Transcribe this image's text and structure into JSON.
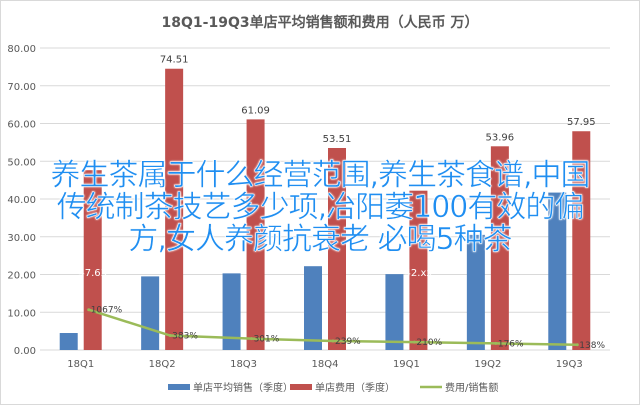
{
  "chart_data": {
    "type": "bar",
    "title": "18Q1-19Q3单店平均销售额和费用（人民币 万）",
    "categories": [
      "18Q1",
      "18Q2",
      "18Q3",
      "18Q4",
      "19Q1",
      "19Q2",
      "19Q3"
    ],
    "ylim": [
      0,
      80
    ],
    "yticks": [
      "0.00",
      "10.00",
      "20.00",
      "30.00",
      "40.00",
      "50.00",
      "60.00",
      "70.00",
      "80.00"
    ],
    "grid": true,
    "legend_position": "bottom",
    "series": [
      {
        "name": "单店平均销售（季度）",
        "kind": "bar",
        "color": "#4f81bd",
        "values": [
          4.5,
          19.5,
          20.3,
          22.2,
          20.1,
          30.5,
          41.7
        ]
      },
      {
        "name": "单店费用（季度）",
        "kind": "bar",
        "color": "#c0504d",
        "values": [
          47.63,
          74.51,
          61.09,
          53.51,
          42.2,
          53.96,
          57.95
        ],
        "labels": [
          "47.63",
          "74.51",
          "61.09",
          "53.51",
          "42.xx",
          "53.96",
          "57.95"
        ]
      },
      {
        "name": "费用/销售额",
        "kind": "line",
        "color": "#9bbb59",
        "values": [
          10.67,
          3.83,
          3.01,
          2.39,
          2.1,
          1.76,
          1.38
        ],
        "labels": [
          "1067%",
          "383%",
          "301%",
          "239%",
          "210%",
          "176%",
          "138%"
        ]
      }
    ]
  },
  "overlay_text": [
    "养生茶属于什么经营范围,养生茶食谱,中国",
    "传统制茶技艺多少项,冶阳萎100有效的偏",
    "方,女人养颜抗衰老 必喝5种茶"
  ]
}
